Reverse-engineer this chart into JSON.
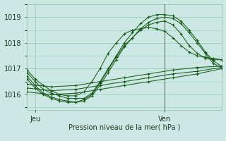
{
  "xlabel": "Pression niveau de la mer( hPa )",
  "bg_color": "#cce8e4",
  "grid_color": "#99ccbb",
  "line_color": "#1a5c1a",
  "vline_color": "#667766",
  "ylim": [
    1015.4,
    1019.5
  ],
  "xlim": [
    0,
    48
  ],
  "yticks": [
    1016,
    1017,
    1018,
    1019
  ],
  "xtick_labels": [
    "Jeu",
    "Ven"
  ],
  "xtick_positions": [
    2,
    34
  ],
  "vline_x": 34,
  "series": [
    {
      "x": [
        0,
        6,
        12,
        18,
        24,
        30,
        36,
        42,
        48
      ],
      "y": [
        1016.4,
        1016.3,
        1016.35,
        1016.5,
        1016.65,
        1016.8,
        1016.95,
        1017.05,
        1017.1
      ]
    },
    {
      "x": [
        0,
        6,
        12,
        18,
        24,
        30,
        36,
        42,
        48
      ],
      "y": [
        1016.25,
        1016.15,
        1016.2,
        1016.35,
        1016.5,
        1016.65,
        1016.8,
        1016.9,
        1017.05
      ]
    },
    {
      "x": [
        0,
        6,
        12,
        18,
        24,
        30,
        36,
        42,
        48
      ],
      "y": [
        1016.1,
        1016.0,
        1016.05,
        1016.2,
        1016.35,
        1016.5,
        1016.65,
        1016.8,
        1017.0
      ]
    },
    {
      "x": [
        0,
        2,
        4,
        6,
        8,
        10,
        12,
        14,
        16,
        18,
        20,
        22,
        24,
        26,
        28,
        30,
        32,
        34,
        36,
        38,
        40,
        42,
        44,
        46,
        48
      ],
      "y": [
        1016.85,
        1016.5,
        1016.2,
        1016.05,
        1015.95,
        1015.85,
        1015.85,
        1015.85,
        1016.05,
        1016.5,
        1017.0,
        1017.5,
        1018.0,
        1018.4,
        1018.75,
        1019.0,
        1019.1,
        1019.1,
        1019.05,
        1018.85,
        1018.5,
        1018.1,
        1017.65,
        1017.3,
        1017.1
      ]
    },
    {
      "x": [
        0,
        2,
        4,
        6,
        8,
        10,
        12,
        14,
        16,
        18,
        20,
        22,
        24,
        26,
        28,
        30,
        32,
        34,
        36,
        38,
        40,
        42,
        44,
        46,
        48
      ],
      "y": [
        1016.7,
        1016.35,
        1016.05,
        1015.9,
        1015.8,
        1015.75,
        1015.7,
        1015.75,
        1015.95,
        1016.35,
        1016.85,
        1017.35,
        1017.85,
        1018.2,
        1018.55,
        1018.8,
        1018.95,
        1019.0,
        1018.95,
        1018.75,
        1018.4,
        1018.0,
        1017.6,
        1017.2,
        1017.05
      ]
    },
    {
      "x": [
        0,
        2,
        4,
        6,
        8,
        10,
        12,
        14,
        16,
        18,
        20,
        22,
        24,
        26,
        28,
        30,
        32,
        34,
        36,
        38,
        40,
        42,
        44,
        46,
        48
      ],
      "y": [
        1016.6,
        1016.25,
        1016.0,
        1015.85,
        1015.75,
        1015.7,
        1015.7,
        1015.8,
        1016.0,
        1016.45,
        1016.95,
        1017.45,
        1017.9,
        1018.2,
        1018.5,
        1018.7,
        1018.8,
        1018.85,
        1018.7,
        1018.35,
        1017.9,
        1017.6,
        1017.4,
        1017.35,
        1017.35
      ]
    },
    {
      "x": [
        0,
        2,
        4,
        6,
        8,
        10,
        12,
        14,
        16,
        18,
        20,
        22,
        24,
        26,
        28,
        30,
        32,
        34,
        36,
        38,
        40,
        42,
        44,
        46,
        48
      ],
      "y": [
        1016.95,
        1016.6,
        1016.35,
        1016.15,
        1016.0,
        1015.95,
        1015.95,
        1016.1,
        1016.5,
        1017.0,
        1017.6,
        1018.0,
        1018.35,
        1018.5,
        1018.55,
        1018.6,
        1018.55,
        1018.45,
        1018.2,
        1017.9,
        1017.65,
        1017.5,
        1017.45,
        1017.4,
        1017.35
      ]
    }
  ]
}
